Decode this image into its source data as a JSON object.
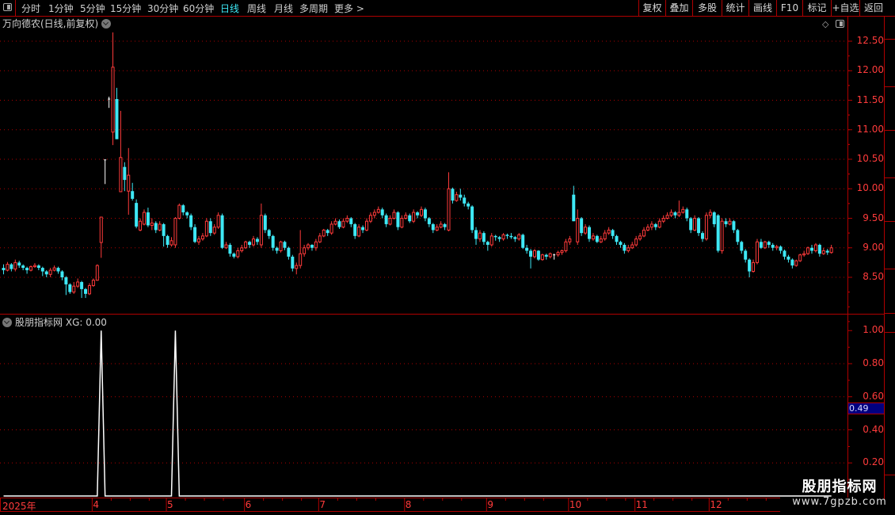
{
  "toolbar": {
    "periods": [
      "分时",
      "1分钟",
      "5分钟",
      "15分钟",
      "30分钟",
      "60分钟",
      "日线",
      "周线",
      "月线",
      "多周期",
      "更多 >"
    ],
    "active_period": "日线",
    "right_buttons": [
      "复权",
      "叠加",
      "多股",
      "统计",
      "画线",
      "F10",
      "标记",
      "+自选",
      "返回"
    ]
  },
  "chart": {
    "title": "万向德农(日线,前复权)",
    "price_labels": [
      "12.50",
      "12.00",
      "11.50",
      "11.00",
      "10.50",
      "10.00",
      "9.50",
      "9.00",
      "8.50"
    ],
    "colors": {
      "up": "#ff3b3b",
      "down": "#3ee8f5",
      "flat": "#ffffff",
      "grid": "#b00000",
      "axis_text": "#ff3b3b"
    },
    "ohlc": [
      [
        8.66,
        8.72,
        8.55,
        8.62
      ],
      [
        8.62,
        8.76,
        8.6,
        8.72
      ],
      [
        8.72,
        8.74,
        8.6,
        8.64
      ],
      [
        8.64,
        8.8,
        8.6,
        8.75
      ],
      [
        8.75,
        8.78,
        8.66,
        8.7
      ],
      [
        8.7,
        8.72,
        8.62,
        8.66
      ],
      [
        8.66,
        8.68,
        8.56,
        8.62
      ],
      [
        8.62,
        8.7,
        8.6,
        8.68
      ],
      [
        8.68,
        8.74,
        8.66,
        8.7
      ],
      [
        8.7,
        8.72,
        8.62,
        8.66
      ],
      [
        8.66,
        8.68,
        8.52,
        8.6
      ],
      [
        8.6,
        8.62,
        8.5,
        8.55
      ],
      [
        8.55,
        8.66,
        8.5,
        8.62
      ],
      [
        8.62,
        8.7,
        8.6,
        8.66
      ],
      [
        8.66,
        8.68,
        8.56,
        8.6
      ],
      [
        8.6,
        8.62,
        8.45,
        8.5
      ],
      [
        8.5,
        8.52,
        8.2,
        8.38
      ],
      [
        8.38,
        8.4,
        8.22,
        8.25
      ],
      [
        8.25,
        8.42,
        8.22,
        8.35
      ],
      [
        8.35,
        8.48,
        8.32,
        8.42
      ],
      [
        8.42,
        8.44,
        8.15,
        8.3
      ],
      [
        8.3,
        8.32,
        8.15,
        8.22
      ],
      [
        8.22,
        8.4,
        8.2,
        8.36
      ],
      [
        8.36,
        8.48,
        8.34,
        8.45
      ],
      [
        8.45,
        8.72,
        8.44,
        8.7
      ],
      [
        9.09,
        9.52,
        8.83,
        9.52
      ],
      [
        10.49,
        10.49,
        10.08,
        10.49
      ],
      [
        11.52,
        11.56,
        11.37,
        11.52
      ],
      [
        10.96,
        12.65,
        10.74,
        12.06
      ],
      [
        11.52,
        11.71,
        10.84,
        10.84
      ],
      [
        9.95,
        11.32,
        9.95,
        10.53
      ],
      [
        10.37,
        10.45,
        9.96,
        10.15
      ],
      [
        9.96,
        10.69,
        9.56,
        10.23
      ],
      [
        9.96,
        10.1,
        9.8,
        9.83
      ],
      [
        9.76,
        9.82,
        9.33,
        9.36
      ],
      [
        9.3,
        9.5,
        9.28,
        9.45
      ],
      [
        9.4,
        9.65,
        9.38,
        9.6
      ],
      [
        9.6,
        9.68,
        9.35,
        9.38
      ],
      [
        9.38,
        9.5,
        9.3,
        9.42
      ],
      [
        9.42,
        9.45,
        9.25,
        9.3
      ],
      [
        9.3,
        9.45,
        9.28,
        9.4
      ],
      [
        9.4,
        9.42,
        9.02,
        9.2
      ],
      [
        9.2,
        9.22,
        9.0,
        9.05
      ],
      [
        9.05,
        9.18,
        9.02,
        9.12
      ],
      [
        9.05,
        9.52,
        9.0,
        9.5
      ],
      [
        9.5,
        9.75,
        9.48,
        9.72
      ],
      [
        9.72,
        9.74,
        9.55,
        9.6
      ],
      [
        9.6,
        9.62,
        9.5,
        9.55
      ],
      [
        9.55,
        9.58,
        9.3,
        9.35
      ],
      [
        9.35,
        9.4,
        9.08,
        9.1
      ],
      [
        9.1,
        9.2,
        9.05,
        9.15
      ],
      [
        9.15,
        9.25,
        9.12,
        9.2
      ],
      [
        9.2,
        9.5,
        9.18,
        9.45
      ],
      [
        9.45,
        9.5,
        9.2,
        9.25
      ],
      [
        9.25,
        9.4,
        9.22,
        9.35
      ],
      [
        9.35,
        9.6,
        9.32,
        9.55
      ],
      [
        9.55,
        9.58,
        8.98,
        9.0
      ],
      [
        9.0,
        9.1,
        8.98,
        9.05
      ],
      [
        9.05,
        9.08,
        8.85,
        8.9
      ],
      [
        8.9,
        8.92,
        8.82,
        8.85
      ],
      [
        8.85,
        9.0,
        8.82,
        8.95
      ],
      [
        8.95,
        9.05,
        8.92,
        9.0
      ],
      [
        9.0,
        9.12,
        8.98,
        9.1
      ],
      [
        9.1,
        9.12,
        9.0,
        9.05
      ],
      [
        9.05,
        9.2,
        9.02,
        9.15
      ],
      [
        9.15,
        9.18,
        9.05,
        9.1
      ],
      [
        9.05,
        9.75,
        9.0,
        9.55
      ],
      [
        9.55,
        9.58,
        9.25,
        9.3
      ],
      [
        9.3,
        9.32,
        9.15,
        9.2
      ],
      [
        9.2,
        9.22,
        8.95,
        9.0
      ],
      [
        9.0,
        9.02,
        8.9,
        8.95
      ],
      [
        8.95,
        9.12,
        8.92,
        9.1
      ],
      [
        9.1,
        9.12,
        8.96,
        9.0
      ],
      [
        9.0,
        9.02,
        8.8,
        8.85
      ],
      [
        8.85,
        8.88,
        8.6,
        8.65
      ],
      [
        8.65,
        8.75,
        8.55,
        8.7
      ],
      [
        8.7,
        9.3,
        8.65,
        8.9
      ],
      [
        8.9,
        9.05,
        8.85,
        9.0
      ],
      [
        9.0,
        9.08,
        8.96,
        9.05
      ],
      [
        9.05,
        9.06,
        8.95,
        9.0
      ],
      [
        9.0,
        9.15,
        8.95,
        9.1
      ],
      [
        9.1,
        9.25,
        9.08,
        9.2
      ],
      [
        9.2,
        9.32,
        9.18,
        9.3
      ],
      [
        9.3,
        9.32,
        9.2,
        9.25
      ],
      [
        9.25,
        9.45,
        9.22,
        9.4
      ],
      [
        9.4,
        9.5,
        9.38,
        9.45
      ],
      [
        9.45,
        9.48,
        9.32,
        9.35
      ],
      [
        9.35,
        9.5,
        9.33,
        9.45
      ],
      [
        9.45,
        9.55,
        9.42,
        9.5
      ],
      [
        9.5,
        9.52,
        9.35,
        9.4
      ],
      [
        9.4,
        9.42,
        9.15,
        9.2
      ],
      [
        9.2,
        9.4,
        9.18,
        9.35
      ],
      [
        9.35,
        9.38,
        9.25,
        9.3
      ],
      [
        9.3,
        9.5,
        9.28,
        9.45
      ],
      [
        9.45,
        9.6,
        9.42,
        9.55
      ],
      [
        9.55,
        9.65,
        9.5,
        9.6
      ],
      [
        9.6,
        9.7,
        9.58,
        9.65
      ],
      [
        9.65,
        9.68,
        9.5,
        9.55
      ],
      [
        9.55,
        9.58,
        9.35,
        9.4
      ],
      [
        9.4,
        9.55,
        9.38,
        9.5
      ],
      [
        9.5,
        9.65,
        9.48,
        9.6
      ],
      [
        9.6,
        9.62,
        9.3,
        9.35
      ],
      [
        9.35,
        9.55,
        9.33,
        9.5
      ],
      [
        9.5,
        9.6,
        9.48,
        9.55
      ],
      [
        9.55,
        9.58,
        9.42,
        9.45
      ],
      [
        9.45,
        9.65,
        9.42,
        9.6
      ],
      [
        9.6,
        9.62,
        9.5,
        9.55
      ],
      [
        9.55,
        9.7,
        9.52,
        9.65
      ],
      [
        9.65,
        9.68,
        9.45,
        9.5
      ],
      [
        9.5,
        9.52,
        9.35,
        9.4
      ],
      [
        9.4,
        9.42,
        9.25,
        9.3
      ],
      [
        9.3,
        9.4,
        9.28,
        9.35
      ],
      [
        9.35,
        9.45,
        9.33,
        9.4
      ],
      [
        9.4,
        9.42,
        9.3,
        9.35
      ],
      [
        9.3,
        10.28,
        9.28,
        10.0
      ],
      [
        10.0,
        10.02,
        9.75,
        9.8
      ],
      [
        9.8,
        9.95,
        9.78,
        9.9
      ],
      [
        9.9,
        10.0,
        9.8,
        9.85
      ],
      [
        9.85,
        9.9,
        9.7,
        9.75
      ],
      [
        9.75,
        9.78,
        9.65,
        9.7
      ],
      [
        9.7,
        9.72,
        9.25,
        9.3
      ],
      [
        9.3,
        9.35,
        9.05,
        9.15
      ],
      [
        9.15,
        9.3,
        9.1,
        9.25
      ],
      [
        9.25,
        9.28,
        9.05,
        9.1
      ],
      [
        9.1,
        9.12,
        8.95,
        9.05
      ],
      [
        9.05,
        9.25,
        9.02,
        9.2
      ],
      [
        9.2,
        9.22,
        9.12,
        9.18
      ],
      [
        9.18,
        9.2,
        9.1,
        9.15
      ],
      [
        9.15,
        9.25,
        9.12,
        9.22
      ],
      [
        9.22,
        9.24,
        9.15,
        9.2
      ],
      [
        9.2,
        9.25,
        9.15,
        9.18
      ],
      [
        9.18,
        9.2,
        9.1,
        9.15
      ],
      [
        9.15,
        9.25,
        9.12,
        9.22
      ],
      [
        9.22,
        9.24,
        8.98,
        9.0
      ],
      [
        9.0,
        9.05,
        8.9,
        8.95
      ],
      [
        8.95,
        8.98,
        8.65,
        8.85
      ],
      [
        8.85,
        8.98,
        8.82,
        8.95
      ],
      [
        8.95,
        8.96,
        8.78,
        8.8
      ],
      [
        8.8,
        8.9,
        8.78,
        8.88
      ],
      [
        8.88,
        8.9,
        8.8,
        8.85
      ],
      [
        8.85,
        8.92,
        8.82,
        8.9
      ],
      [
        8.88,
        8.9,
        8.8,
        8.88
      ],
      [
        8.88,
        8.95,
        8.85,
        8.92
      ],
      [
        8.92,
        8.97,
        8.88,
        8.95
      ],
      [
        8.95,
        9.15,
        8.92,
        9.1
      ],
      [
        9.1,
        9.2,
        9.05,
        9.15
      ],
      [
        9.9,
        10.05,
        9.45,
        9.45
      ],
      [
        9.1,
        9.65,
        9.05,
        9.5
      ],
      [
        9.5,
        9.52,
        9.2,
        9.25
      ],
      [
        9.25,
        9.4,
        9.22,
        9.35
      ],
      [
        9.35,
        9.38,
        9.1,
        9.15
      ],
      [
        9.15,
        9.25,
        9.12,
        9.2
      ],
      [
        9.2,
        9.22,
        9.08,
        9.1
      ],
      [
        9.1,
        9.2,
        9.08,
        9.15
      ],
      [
        9.15,
        9.3,
        9.12,
        9.25
      ],
      [
        9.25,
        9.35,
        9.22,
        9.3
      ],
      [
        9.3,
        9.32,
        9.15,
        9.2
      ],
      [
        9.2,
        9.22,
        9.05,
        9.1
      ],
      [
        9.1,
        9.12,
        9.0,
        9.05
      ],
      [
        9.05,
        9.08,
        8.9,
        8.95
      ],
      [
        8.95,
        9.05,
        8.92,
        9.0
      ],
      [
        9.0,
        9.1,
        8.98,
        9.05
      ],
      [
        9.05,
        9.2,
        9.02,
        9.15
      ],
      [
        9.15,
        9.25,
        9.12,
        9.2
      ],
      [
        9.2,
        9.35,
        9.18,
        9.3
      ],
      [
        9.3,
        9.4,
        9.28,
        9.35
      ],
      [
        9.35,
        9.45,
        9.3,
        9.4
      ],
      [
        9.4,
        9.42,
        9.3,
        9.35
      ],
      [
        9.35,
        9.5,
        9.33,
        9.45
      ],
      [
        9.45,
        9.55,
        9.42,
        9.5
      ],
      [
        9.5,
        9.6,
        9.48,
        9.55
      ],
      [
        9.55,
        9.65,
        9.52,
        9.6
      ],
      [
        9.6,
        9.62,
        9.5,
        9.55
      ],
      [
        9.55,
        9.8,
        9.52,
        9.6
      ],
      [
        9.6,
        9.7,
        9.58,
        9.65
      ],
      [
        9.65,
        9.68,
        9.45,
        9.5
      ],
      [
        9.5,
        9.52,
        9.25,
        9.3
      ],
      [
        9.3,
        9.55,
        9.28,
        9.5
      ],
      [
        9.5,
        9.52,
        9.2,
        9.25
      ],
      [
        9.25,
        9.28,
        9.1,
        9.15
      ],
      [
        9.15,
        9.6,
        9.12,
        9.55
      ],
      [
        9.55,
        9.65,
        9.5,
        9.6
      ],
      [
        9.6,
        9.62,
        9.35,
        9.4
      ],
      [
        9.55,
        9.57,
        8.92,
        8.95
      ],
      [
        8.95,
        9.5,
        8.9,
        9.45
      ],
      [
        9.45,
        9.5,
        9.35,
        9.4
      ],
      [
        9.4,
        9.5,
        9.38,
        9.45
      ],
      [
        9.45,
        9.47,
        9.25,
        9.3
      ],
      [
        9.3,
        9.32,
        9.05,
        9.1
      ],
      [
        9.1,
        9.12,
        8.9,
        8.95
      ],
      [
        8.95,
        8.98,
        8.75,
        8.8
      ],
      [
        8.8,
        8.82,
        8.5,
        8.6
      ],
      [
        8.6,
        8.8,
        8.58,
        8.75
      ],
      [
        8.75,
        9.15,
        8.72,
        9.1
      ],
      [
        9.1,
        9.15,
        8.98,
        9.0
      ],
      [
        9.0,
        9.12,
        8.98,
        9.1
      ],
      [
        9.1,
        9.12,
        9.0,
        9.05
      ],
      [
        9.05,
        9.08,
        8.95,
        9.0
      ],
      [
        9.0,
        9.05,
        8.96,
        9.02
      ],
      [
        9.02,
        9.04,
        8.9,
        8.95
      ],
      [
        8.95,
        8.97,
        8.8,
        8.85
      ],
      [
        8.85,
        8.88,
        8.75,
        8.8
      ],
      [
        8.8,
        8.82,
        8.65,
        8.7
      ],
      [
        8.7,
        8.8,
        8.68,
        8.78
      ],
      [
        8.78,
        8.9,
        8.76,
        8.88
      ],
      [
        8.88,
        8.95,
        8.85,
        8.9
      ],
      [
        8.9,
        9.02,
        8.88,
        9.0
      ],
      [
        9.0,
        9.05,
        8.9,
        8.95
      ],
      [
        8.95,
        9.08,
        8.92,
        9.05
      ],
      [
        9.05,
        9.07,
        8.85,
        8.9
      ],
      [
        8.9,
        9.0,
        8.88,
        8.95
      ],
      [
        8.95,
        8.98,
        8.88,
        8.92
      ],
      [
        8.92,
        9.05,
        8.9,
        9.0
      ]
    ]
  },
  "indicator": {
    "name": "股朋指标网",
    "readout": "XG: 0.00",
    "labels": [
      "1.00",
      "0.80",
      "0.60",
      "0.40",
      "0.20"
    ],
    "current_value": "0.49",
    "signal_indices": [
      25,
      44
    ]
  },
  "date_axis": {
    "year_label": "2025年",
    "months": [
      {
        "label": "4",
        "index": 23
      },
      {
        "label": "5",
        "index": 42
      },
      {
        "label": "6",
        "index": 62
      },
      {
        "label": "7",
        "index": 81
      },
      {
        "label": "8",
        "index": 103
      },
      {
        "label": "9",
        "index": 124
      },
      {
        "label": "10",
        "index": 145
      },
      {
        "label": "11",
        "index": 162
      },
      {
        "label": "12",
        "index": 181
      }
    ]
  },
  "watermark": {
    "line1": "股朋指标网",
    "line2": "www.7gpzb.com"
  }
}
